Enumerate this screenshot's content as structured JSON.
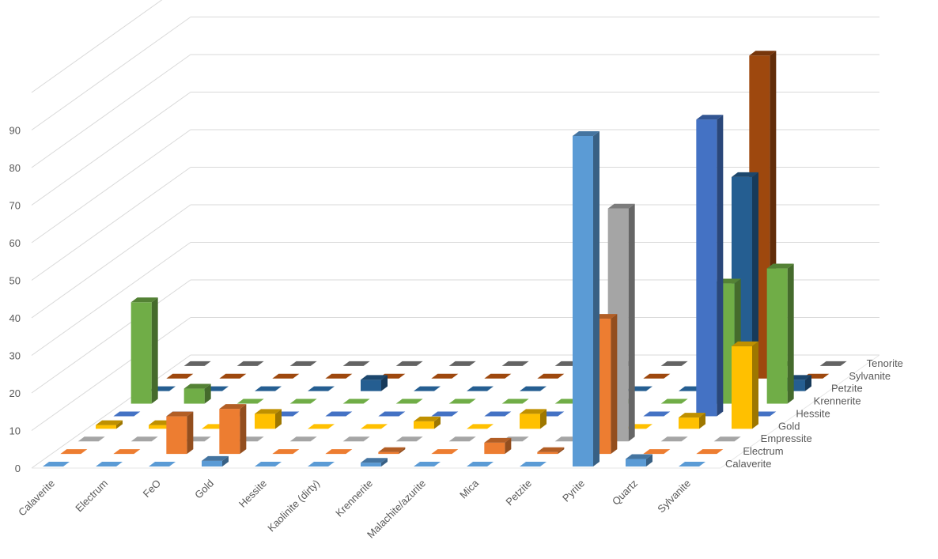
{
  "chart_data": {
    "type": "bar",
    "subtype": "3d-column",
    "title": "",
    "xlabel": "",
    "ylabel": "",
    "ylim": [
      0,
      100
    ],
    "y_ticks": [
      0,
      10,
      20,
      30,
      40,
      50,
      60,
      70,
      80,
      90
    ],
    "grid": true,
    "legend": "none",
    "categories": [
      "Calaverite",
      "Electrum",
      "FeO",
      "Gold",
      "Hessite",
      "Kaolinite (dirty)",
      "Krennerite",
      "Malachite/azurite",
      "Mica",
      "Petzite",
      "Pyrite",
      "Quartz",
      "Sylvanite"
    ],
    "series": [
      {
        "name": "Calaverite",
        "color": "#5b9bd5",
        "values": [
          0,
          0,
          0,
          1.5,
          0,
          0,
          1,
          0,
          0,
          0,
          88,
          2,
          0
        ]
      },
      {
        "name": "Electrum",
        "color": "#ed7d31",
        "values": [
          0,
          0,
          10,
          12,
          0,
          0,
          0.5,
          0,
          3,
          0.5,
          36,
          0,
          0
        ]
      },
      {
        "name": "Empressite",
        "color": "#a5a5a5",
        "values": [
          0,
          0,
          0,
          0,
          0,
          0,
          0,
          0,
          0,
          0,
          62,
          0,
          0
        ]
      },
      {
        "name": "Gold",
        "color": "#ffc000",
        "values": [
          1,
          1,
          0,
          4,
          0,
          0,
          2,
          0,
          4,
          2,
          0,
          3,
          22
        ]
      },
      {
        "name": "Hessite",
        "color": "#4472c4",
        "values": [
          0,
          0,
          0,
          0,
          0,
          0,
          0,
          0,
          0,
          0,
          0,
          79,
          0
        ]
      },
      {
        "name": "Krennerite",
        "color": "#70ad47",
        "values": [
          27,
          4,
          0,
          0,
          0,
          0,
          0,
          0,
          0,
          0,
          0,
          32,
          36
        ]
      },
      {
        "name": "Petzite",
        "color": "#255e91",
        "values": [
          0,
          0,
          0,
          0,
          3,
          0,
          0,
          0,
          0,
          0,
          0,
          57,
          3
        ]
      },
      {
        "name": "Sylvanite",
        "color": "#9e480e",
        "values": [
          0,
          0,
          0,
          0,
          0,
          0,
          0,
          0,
          6,
          0,
          0,
          86,
          0
        ]
      },
      {
        "name": "Tenorite",
        "color": "#636363",
        "values": [
          0,
          0,
          0,
          0,
          0,
          0,
          0,
          0,
          0,
          0,
          0,
          0,
          0
        ]
      }
    ]
  }
}
